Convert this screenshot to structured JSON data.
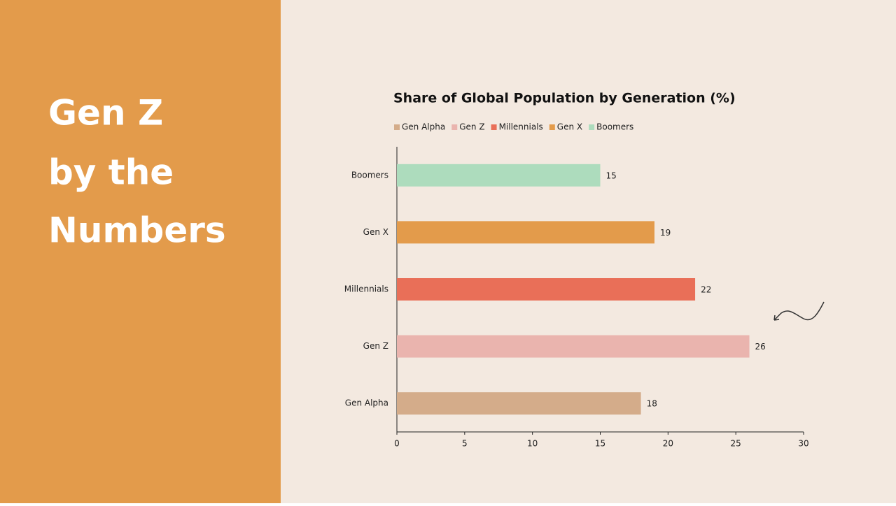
{
  "slide_title_lines": [
    "Gen Z",
    "by the",
    "Numbers"
  ],
  "chart_data": {
    "type": "bar",
    "orientation": "horizontal",
    "title": "Share of Global Population by Generation (%)",
    "categories": [
      "Gen Alpha",
      "Gen Z",
      "Millennials",
      "Gen X",
      "Boomers"
    ],
    "values": [
      18,
      26,
      22,
      19,
      15
    ],
    "colors": [
      "#d4ac8a",
      "#eab4ae",
      "#e96f58",
      "#e39b4b",
      "#addcbd"
    ],
    "xlim": [
      0,
      30
    ],
    "xticks": [
      0,
      5,
      10,
      15,
      20,
      25,
      30
    ],
    "legend": "top-left",
    "grid": false
  }
}
